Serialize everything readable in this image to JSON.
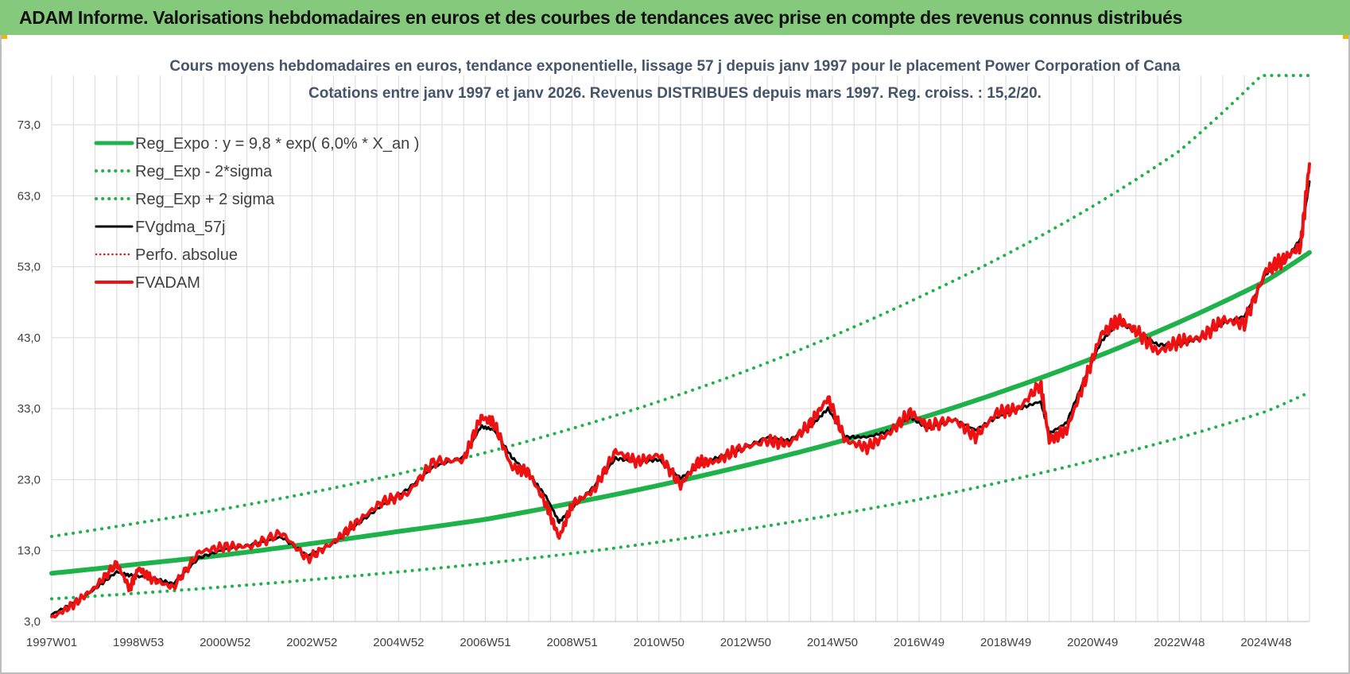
{
  "page": {
    "banner": "ADAM Informe. Valorisations hebdomadaires en euros et des courbes de tendances avec prise en compte des revenus connus distribués"
  },
  "colors": {
    "banner_bg": "#84c97c",
    "regression": "#1fb24a",
    "smoothed": "#000000",
    "price": "#ee1111",
    "grid": "#d9d9d9"
  },
  "chart_data": {
    "type": "line",
    "title": "Cours moyens hebdomadaires en euros, tendance exponentielle, lissage 57 j depuis janv 1997 pour le placement Power Corporation of Cana",
    "subtitle": "Cotations entre janv 1997 et janv 2026. Revenus DISTRIBUES depuis mars 1997. Reg. croiss. : 15,2/20.",
    "xlabel": "",
    "ylabel": "",
    "x_range": [
      1997.0,
      2026.0
    ],
    "ylim": [
      3,
      80
    ],
    "y_ticks": [
      "3,0",
      "13,0",
      "23,0",
      "33,0",
      "43,0",
      "53,0",
      "63,0",
      "73,0"
    ],
    "y_tick_values": [
      3,
      13,
      23,
      33,
      43,
      53,
      63,
      73
    ],
    "x_ticks": [
      "1997W01",
      "1998W53",
      "2000W52",
      "2002W52",
      "2004W52",
      "2006W51",
      "2008W51",
      "2010W50",
      "2012W50",
      "2014W50",
      "2016W49",
      "2018W49",
      "2020W49",
      "2022W48",
      "2024W48"
    ],
    "x_tick_values": [
      1997.0,
      1999.0,
      2001.0,
      2003.0,
      2005.0,
      2007.0,
      2009.0,
      2011.0,
      2013.0,
      2015.0,
      2017.0,
      2019.0,
      2021.0,
      2023.0,
      2025.0
    ],
    "grid": true,
    "legend_position": "top-left",
    "series": [
      {
        "name": "Reg_Expo : y = 9,8 * exp( 6,0% *  X_an )",
        "style": "solid",
        "x": [
          1997.0,
          1999.0,
          2001.0,
          2003.0,
          2005.0,
          2007.0,
          2009.0,
          2011.0,
          2013.0,
          2015.0,
          2017.0,
          2019.0,
          2021.0,
          2023.0,
          2025.0,
          2026.0
        ],
        "y": [
          9.8,
          11.1,
          12.4,
          14.0,
          15.7,
          17.4,
          19.7,
          22.2,
          25.0,
          28.1,
          31.6,
          35.6,
          40.1,
          45.2,
          51.0,
          55.0
        ]
      },
      {
        "name": "Reg_Exp - 2*sigma",
        "style": "dotted",
        "x": [
          1997.0,
          1999.0,
          2001.0,
          2003.0,
          2005.0,
          2007.0,
          2009.0,
          2011.0,
          2013.0,
          2015.0,
          2017.0,
          2019.0,
          2021.0,
          2023.0,
          2025.0,
          2026.0
        ],
        "y": [
          6.2,
          7.0,
          7.9,
          8.9,
          10.0,
          11.2,
          12.6,
          14.2,
          16.0,
          18.0,
          20.2,
          22.8,
          25.7,
          28.9,
          32.6,
          35.3
        ]
      },
      {
        "name": "Reg_Exp + 2 sigma",
        "style": "dotted",
        "x": [
          1997.0,
          1999.0,
          2001.0,
          2003.0,
          2005.0,
          2007.0,
          2009.0,
          2011.0,
          2013.0,
          2015.0,
          2017.0,
          2019.0,
          2021.0,
          2023.0,
          2024.9,
          2026.0
        ],
        "y": [
          15.0,
          16.9,
          18.9,
          21.2,
          23.8,
          26.8,
          30.2,
          34.0,
          38.3,
          43.2,
          48.7,
          54.7,
          61.5,
          69.3,
          80.0,
          80.0
        ]
      },
      {
        "name": "FVgdma_57j",
        "style": "solid",
        "x": [
          1997.0,
          1997.5,
          1998.0,
          1998.5,
          1998.8,
          1999.3,
          1999.8,
          2000.4,
          2001.0,
          2001.6,
          2002.3,
          2002.9,
          2003.5,
          2004.0,
          2004.6,
          2005.2,
          2005.8,
          2006.5,
          2006.9,
          2007.2,
          2007.6,
          2008.0,
          2008.4,
          2008.7,
          2009.0,
          2009.5,
          2010.0,
          2010.5,
          2011.0,
          2011.5,
          2011.9,
          2012.3,
          2012.8,
          2013.5,
          2014.0,
          2014.5,
          2014.9,
          2015.3,
          2015.8,
          2016.3,
          2016.8,
          2017.2,
          2017.8,
          2018.3,
          2018.8,
          2019.3,
          2019.8,
          2020.0,
          2020.4,
          2020.8,
          2021.2,
          2021.6,
          2022.0,
          2022.5,
          2023.0,
          2023.5,
          2024.0,
          2024.5,
          2025.0,
          2025.4,
          2025.8,
          2026.0
        ],
        "y": [
          4.0,
          5.6,
          7.6,
          10.0,
          9.5,
          9.2,
          8.3,
          12.0,
          13.2,
          13.8,
          14.9,
          12.3,
          14.0,
          16.5,
          19.3,
          21.6,
          24.8,
          26.2,
          30.5,
          30.0,
          26.2,
          23.8,
          20.6,
          17.0,
          19.0,
          22.0,
          26.0,
          25.5,
          25.8,
          23.2,
          24.8,
          26.0,
          27.0,
          29.0,
          28.5,
          30.5,
          33.0,
          29.0,
          29.0,
          29.8,
          31.8,
          30.2,
          31.5,
          30.0,
          31.8,
          33.0,
          34.0,
          29.5,
          31.0,
          37.0,
          42.5,
          45.0,
          44.0,
          42.0,
          42.0,
          43.0,
          45.0,
          46.0,
          52.0,
          53.5,
          57.0,
          65.0
        ]
      },
      {
        "name": "Perfo. absolue",
        "style": "dotted",
        "x": [],
        "y": []
      },
      {
        "name": "FVADAM",
        "style": "solid",
        "x": [
          1997.0,
          1997.5,
          1998.0,
          1998.5,
          1998.8,
          1999.0,
          1999.3,
          1999.8,
          2000.4,
          2001.0,
          2001.6,
          2002.3,
          2002.9,
          2003.5,
          2004.0,
          2004.6,
          2005.2,
          2005.8,
          2006.5,
          2006.9,
          2007.2,
          2007.6,
          2008.0,
          2008.4,
          2008.7,
          2009.0,
          2009.5,
          2010.0,
          2010.5,
          2011.0,
          2011.5,
          2011.9,
          2012.3,
          2012.8,
          2013.5,
          2014.0,
          2014.5,
          2014.9,
          2015.3,
          2015.8,
          2016.3,
          2016.8,
          2017.2,
          2017.8,
          2018.3,
          2018.8,
          2019.3,
          2019.8,
          2020.0,
          2020.4,
          2020.8,
          2021.2,
          2021.6,
          2022.0,
          2022.5,
          2023.0,
          2023.5,
          2024.0,
          2024.5,
          2025.0,
          2025.4,
          2025.8,
          2026.0
        ],
        "y": [
          3.5,
          5.4,
          7.8,
          11.2,
          7.6,
          10.5,
          9.0,
          7.8,
          12.8,
          13.6,
          13.6,
          15.5,
          11.8,
          14.2,
          16.8,
          19.8,
          21.0,
          25.5,
          25.8,
          31.8,
          31.0,
          24.8,
          24.0,
          19.5,
          14.8,
          19.5,
          21.5,
          27.0,
          25.5,
          26.5,
          22.2,
          25.5,
          25.5,
          27.2,
          28.5,
          28.0,
          31.0,
          34.5,
          28.5,
          27.5,
          29.5,
          32.5,
          30.5,
          31.5,
          29.0,
          32.5,
          33.0,
          36.5,
          28.5,
          30.0,
          36.5,
          43.5,
          45.5,
          44.0,
          41.0,
          42.5,
          43.0,
          45.5,
          45.0,
          52.5,
          54.0,
          56.0,
          67.5
        ]
      }
    ]
  }
}
